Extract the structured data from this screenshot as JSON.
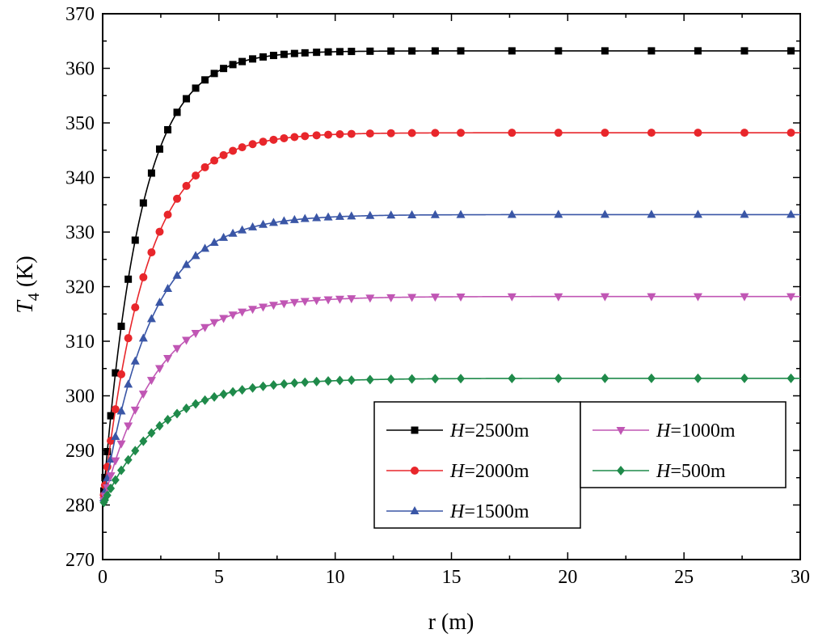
{
  "chart_data": {
    "type": "line",
    "xlabel": "r (m)",
    "ylabel_main": "T",
    "ylabel_sub": "4",
    "ylabel_unit": " (K)",
    "xlim": [
      0,
      30
    ],
    "ylim": [
      270,
      370
    ],
    "xticks": [
      0,
      5,
      10,
      15,
      20,
      25,
      30
    ],
    "yticks": [
      270,
      280,
      290,
      300,
      310,
      320,
      330,
      340,
      350,
      360,
      370
    ],
    "xtick_labels": [
      "0",
      "5",
      "10",
      "15",
      "20",
      "25",
      "30"
    ],
    "ytick_labels": [
      "270",
      "280",
      "290",
      "300",
      "310",
      "320",
      "330",
      "340",
      "350",
      "360",
      "370"
    ],
    "grid": false,
    "legend_position": "bottom-right",
    "series": [
      {
        "name": "H=2500m",
        "legend_var": "H",
        "legend_rest": "=2500m",
        "color": "#000000",
        "marker": "square",
        "y0": 280,
        "ymax": 363.2,
        "tau": 1.6
      },
      {
        "name": "H=2000m",
        "legend_var": "H",
        "legend_rest": "=2000m",
        "color": "#e8262b",
        "marker": "circle",
        "y0": 280,
        "ymax": 348.2,
        "tau": 1.85
      },
      {
        "name": "H=1500m",
        "legend_var": "H",
        "legend_rest": "=1500m",
        "color": "#3a56a6",
        "marker": "triangle-up",
        "y0": 280,
        "ymax": 333.2,
        "tau": 2.05
      },
      {
        "name": "H=1000m",
        "legend_var": "H",
        "legend_rest": "=1000m",
        "color": "#c056b4",
        "marker": "triangle-down",
        "y0": 280,
        "ymax": 318.2,
        "tau": 2.3
      },
      {
        "name": "H=500m",
        "legend_var": "H",
        "legend_rest": "=500m",
        "color": "#1f8a4a",
        "marker": "diamond",
        "y0": 280,
        "ymax": 303.2,
        "tau": 2.5
      }
    ],
    "marker_r": [
      0.05,
      0.1,
      0.2,
      0.35,
      0.55,
      0.8,
      1.1,
      1.4,
      1.75,
      2.1,
      2.45,
      2.8,
      3.2,
      3.6,
      4.0,
      4.4,
      4.8,
      5.2,
      5.6,
      6.0,
      6.45,
      6.9,
      7.35,
      7.8,
      8.25,
      8.7,
      9.2,
      9.7,
      10.2,
      10.7,
      11.5,
      12.4,
      13.3,
      14.3,
      15.4,
      17.6,
      19.6,
      21.6,
      23.6,
      25.6,
      27.6,
      29.6
    ]
  }
}
